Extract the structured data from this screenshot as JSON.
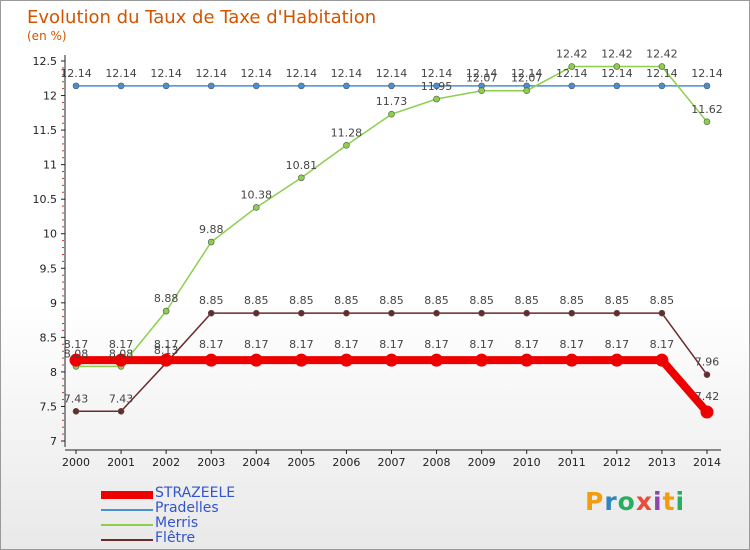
{
  "title": "Evolution du Taux de Taxe d'Habitation",
  "subtitle": "(en %)",
  "logo": {
    "letters": [
      "P",
      "r",
      "o",
      "x",
      "i",
      "t",
      "i"
    ],
    "colors": [
      "#f39c12",
      "#2e86c1",
      "#27ae60",
      "#e74c3c",
      "#8e44ad",
      "#f39c12",
      "#27ae60"
    ]
  },
  "chart_data": {
    "type": "line",
    "title": "Evolution du Taux de Taxe d'Habitation",
    "ylabel": "(en %)",
    "xlabel": "",
    "x": [
      "2000",
      "2001",
      "2002",
      "2003",
      "2004",
      "2005",
      "2006",
      "2007",
      "2008",
      "2009",
      "2010",
      "2011",
      "2012",
      "2013",
      "2014"
    ],
    "ylim": [
      7,
      12.5
    ],
    "yticks": [
      "7",
      "7.5",
      "8",
      "8.5",
      "9",
      "9.5",
      "10",
      "10.5",
      "11",
      "11.5",
      "12",
      "12.5"
    ],
    "grid": false,
    "legend_position": "bottom-left",
    "series": [
      {
        "name": "STRAZEELE",
        "color": "#ee0000",
        "values": [
          8.17,
          8.17,
          8.17,
          8.17,
          8.17,
          8.17,
          8.17,
          8.17,
          8.17,
          8.17,
          8.17,
          8.17,
          8.17,
          8.17,
          7.42
        ],
        "labels": [
          "8.17",
          "8.17",
          "8.17",
          "8.17",
          "8.17",
          "8.17",
          "8.17",
          "8.17",
          "8.17",
          "8.17",
          "8.17",
          "8.17",
          "8.17",
          "8.17",
          "7.42"
        ]
      },
      {
        "name": "Pradelles",
        "color": "#4a8fd0",
        "values": [
          12.14,
          12.14,
          12.14,
          12.14,
          12.14,
          12.14,
          12.14,
          12.14,
          12.14,
          12.14,
          12.14,
          12.14,
          12.14,
          12.14,
          12.14
        ],
        "labels": [
          "12.14",
          "12.14",
          "12.14",
          "12.14",
          "12.14",
          "12.14",
          "12.14",
          "12.14",
          "12.14",
          "12.14",
          "12.14",
          "12.14",
          "12.14",
          "12.14",
          "12.14"
        ]
      },
      {
        "name": "Merris",
        "color": "#8ccf4d",
        "values": [
          8.08,
          8.08,
          8.88,
          9.88,
          10.38,
          10.81,
          11.28,
          11.73,
          11.95,
          12.07,
          12.07,
          12.42,
          12.42,
          12.42,
          11.62
        ],
        "labels": [
          "8.08",
          "8.08",
          "8.88",
          "9.88",
          "10.38",
          "10.81",
          "11.28",
          "11.73",
          "11.95",
          "12.07",
          "12.07",
          "12.42",
          "12.42",
          "12.42",
          "11.62"
        ]
      },
      {
        "name": "Flêtre",
        "color": "#6b2a2a",
        "values": [
          7.43,
          7.43,
          8.13,
          8.85,
          8.85,
          8.85,
          8.85,
          8.85,
          8.85,
          8.85,
          8.85,
          8.85,
          8.85,
          8.85,
          7.96
        ],
        "labels": [
          "7.43",
          "7.43",
          "8.13",
          "8.85",
          "8.85",
          "8.85",
          "8.85",
          "8.85",
          "8.85",
          "8.85",
          "8.85",
          "8.85",
          "8.85",
          "8.85",
          "7.96"
        ]
      }
    ]
  }
}
